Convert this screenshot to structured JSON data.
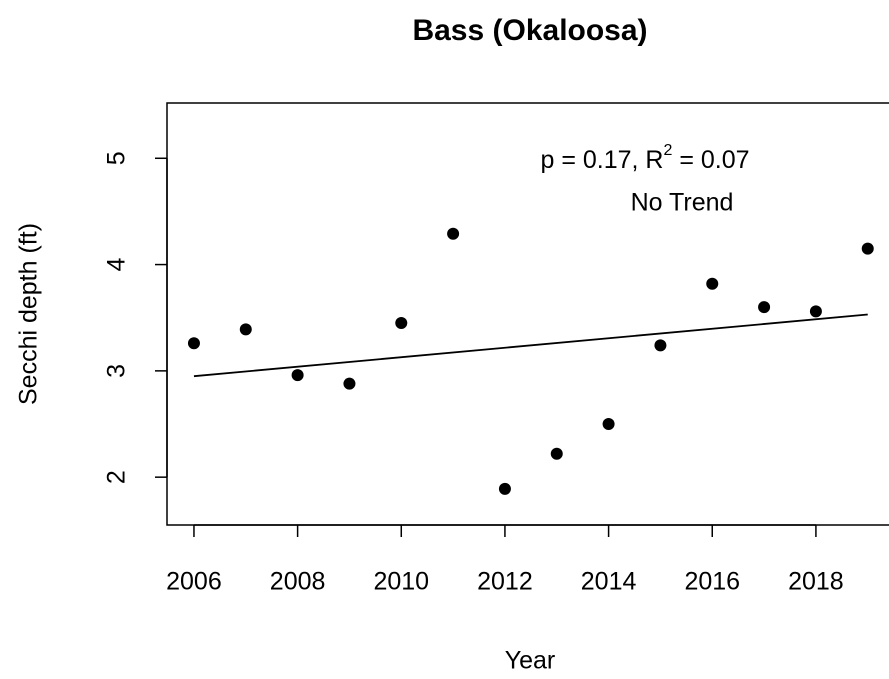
{
  "chart_data": {
    "type": "scatter",
    "title": "Bass (Okaloosa)",
    "x_label": "Year",
    "y_label": "Secchi depth (ft)",
    "x": [
      2006,
      2007,
      2008,
      2009,
      2010,
      2011,
      2012,
      2013,
      2014,
      2015,
      2016,
      2017,
      2018,
      2019
    ],
    "values": [
      3.26,
      3.39,
      2.96,
      2.88,
      3.45,
      4.29,
      1.89,
      2.22,
      2.5,
      3.24,
      3.82,
      3.6,
      3.56,
      4.15
    ],
    "color": "#000000",
    "trend": {
      "x": [
        2006,
        2019
      ],
      "values": [
        2.95,
        3.53
      ]
    },
    "annotation": {
      "text_before": "p = 0.17, R",
      "superscript": "2",
      "text_after": " = 0.07",
      "verdict": "No Trend"
    },
    "xlim": [
      2005.48,
      2019.52
    ],
    "ylim": [
      1.55,
      5.52
    ],
    "xticks": [
      2006,
      2008,
      2010,
      2012,
      2014,
      2016,
      2018
    ],
    "yticks": [
      2,
      3,
      4,
      5
    ]
  }
}
